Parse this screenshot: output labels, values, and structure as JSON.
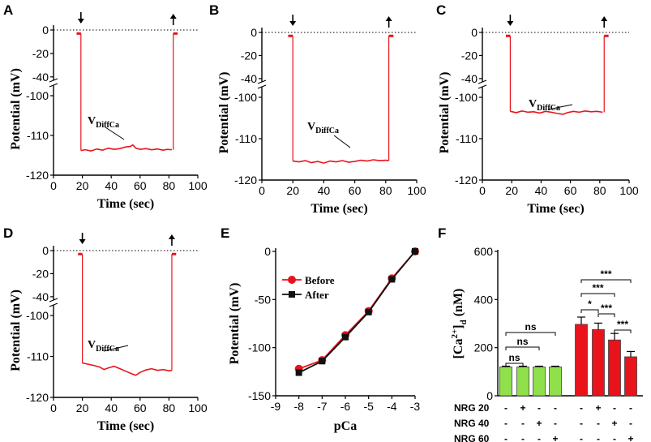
{
  "chart_data": [
    {
      "panel": "A",
      "type": "line",
      "xlabel": "Time (sec)",
      "ylabel": "Potential (mV)",
      "xlim": [
        0,
        100
      ],
      "xticks": [
        "0",
        "20",
        "40",
        "60",
        "80",
        "100"
      ],
      "upper_yticks": [
        "0",
        "-20",
        "-40"
      ],
      "lower_yticks": [
        "-100",
        "-110",
        "-120"
      ],
      "annotation": {
        "main": "V",
        "sub": "DiffCa"
      },
      "arrows": [
        {
          "x": 19,
          "dir": "down"
        },
        {
          "x": 83,
          "dir": "up"
        }
      ],
      "baseline": -3,
      "lower_trace": [
        [
          19,
          -113.8
        ],
        [
          22,
          -113.6
        ],
        [
          26,
          -113.9
        ],
        [
          30,
          -113.4
        ],
        [
          34,
          -113.7
        ],
        [
          38,
          -113.2
        ],
        [
          42,
          -113.5
        ],
        [
          46,
          -113.3
        ],
        [
          50,
          -112.9
        ],
        [
          53,
          -112.8
        ],
        [
          55,
          -112.4
        ],
        [
          57,
          -113.2
        ],
        [
          60,
          -113.5
        ],
        [
          64,
          -113.3
        ],
        [
          68,
          -113.6
        ],
        [
          72,
          -113.4
        ],
        [
          76,
          -113.7
        ],
        [
          79,
          -113.5
        ],
        [
          82,
          -113.6
        ]
      ]
    },
    {
      "panel": "B",
      "type": "line",
      "xlabel": "Time (sec)",
      "ylabel": "Potential (mV)",
      "xlim": [
        0,
        100
      ],
      "xticks": [
        "0",
        "20",
        "40",
        "60",
        "80",
        "100"
      ],
      "upper_yticks": [
        "0",
        "-20",
        "-40"
      ],
      "lower_yticks": [
        "-100",
        "-110",
        "-120"
      ],
      "annotation": {
        "main": "V",
        "sub": "DiffCa"
      },
      "arrows": [
        {
          "x": 20,
          "dir": "down"
        },
        {
          "x": 82,
          "dir": "up"
        }
      ],
      "baseline": -3,
      "lower_trace": [
        [
          20,
          -115.4
        ],
        [
          24,
          -115.6
        ],
        [
          28,
          -115.3
        ],
        [
          32,
          -115.8
        ],
        [
          36,
          -115.5
        ],
        [
          40,
          -115.9
        ],
        [
          44,
          -115.4
        ],
        [
          48,
          -115.6
        ],
        [
          52,
          -115.3
        ],
        [
          56,
          -115.7
        ],
        [
          60,
          -115.5
        ],
        [
          64,
          -115.2
        ],
        [
          68,
          -115.4
        ],
        [
          72,
          -115.1
        ],
        [
          76,
          -115.3
        ],
        [
          80,
          -115.2
        ],
        [
          82,
          -115.3
        ]
      ]
    },
    {
      "panel": "C",
      "type": "line",
      "xlabel": "Time (sec)",
      "ylabel": "Potential (mV)",
      "xlim": [
        0,
        100
      ],
      "xticks": [
        "0",
        "20",
        "40",
        "60",
        "80",
        "100"
      ],
      "upper_yticks": [
        "0",
        "-20",
        "-40"
      ],
      "lower_yticks": [
        "-100",
        "-110",
        "-120"
      ],
      "annotation": {
        "main": "V",
        "sub": "DiffCa"
      },
      "arrows": [
        {
          "x": 19,
          "dir": "down"
        },
        {
          "x": 83,
          "dir": "up"
        }
      ],
      "baseline": -3,
      "lower_trace": [
        [
          19,
          -103.4
        ],
        [
          23,
          -103.7
        ],
        [
          27,
          -103.3
        ],
        [
          31,
          -103.6
        ],
        [
          35,
          -103.5
        ],
        [
          39,
          -103.8
        ],
        [
          43,
          -103.4
        ],
        [
          47,
          -103.6
        ],
        [
          51,
          -103.9
        ],
        [
          55,
          -104.1
        ],
        [
          58,
          -103.7
        ],
        [
          62,
          -103.4
        ],
        [
          66,
          -103.6
        ],
        [
          70,
          -103.3
        ],
        [
          74,
          -103.5
        ],
        [
          78,
          -103.4
        ],
        [
          82,
          -103.6
        ]
      ]
    },
    {
      "panel": "D",
      "type": "line",
      "xlabel": "Time (sec)",
      "ylabel": "Potential (mV)",
      "xlim": [
        0,
        100
      ],
      "xticks": [
        "0",
        "20",
        "40",
        "60",
        "80",
        "100"
      ],
      "upper_yticks": [
        "0",
        "-20",
        "-40"
      ],
      "lower_yticks": [
        "-100",
        "-110",
        "-120"
      ],
      "annotation": {
        "main": "V",
        "sub": "DiffCa"
      },
      "arrows": [
        {
          "x": 20,
          "dir": "down"
        },
        {
          "x": 82,
          "dir": "up"
        }
      ],
      "baseline": -3,
      "lower_trace": [
        [
          20,
          -111.6
        ],
        [
          24,
          -111.9
        ],
        [
          28,
          -112.2
        ],
        [
          32,
          -112.6
        ],
        [
          35,
          -113.2
        ],
        [
          38,
          -112.8
        ],
        [
          42,
          -112.4
        ],
        [
          46,
          -113.0
        ],
        [
          50,
          -113.6
        ],
        [
          54,
          -114.2
        ],
        [
          57,
          -114.6
        ],
        [
          60,
          -113.9
        ],
        [
          64,
          -113.3
        ],
        [
          68,
          -113.0
        ],
        [
          72,
          -113.4
        ],
        [
          76,
          -113.2
        ],
        [
          80,
          -113.5
        ],
        [
          82,
          -113.4
        ]
      ]
    },
    {
      "panel": "E",
      "type": "line",
      "xlabel": "pCa",
      "ylabel": "Potential (mV)",
      "xlim": [
        -9,
        -3
      ],
      "ylim": [
        -150,
        0
      ],
      "xticks": [
        "-9",
        "-8",
        "-7",
        "-6",
        "-5",
        "-4",
        "-3"
      ],
      "yticks": [
        "0",
        "-50",
        "-100",
        "-150"
      ],
      "x": [
        -8,
        -7,
        -6,
        -5,
        -4,
        -3
      ],
      "series": [
        {
          "name": "Before",
          "values": [
            -122,
            -113,
            -87,
            -62,
            -28,
            0
          ],
          "color": "#e8131b",
          "marker": "circle"
        },
        {
          "name": "After",
          "values": [
            -126,
            -114,
            -89,
            -63,
            -29,
            0
          ],
          "color": "#111111",
          "marker": "square"
        }
      ],
      "legend": [
        "Before",
        "After"
      ]
    },
    {
      "panel": "F",
      "type": "bar",
      "ylabel_main": "[Ca",
      "ylabel_sup": "2+",
      "ylabel_close": "]",
      "ylabel_sub": "d",
      "ylabel_unit": " (nM)",
      "ylim": [
        0,
        600
      ],
      "yticks": [
        "0",
        "200",
        "400",
        "600"
      ],
      "groups": [
        {
          "name": "green",
          "color": "#8fe04a",
          "values": [
            120,
            120,
            120,
            120
          ],
          "errors": [
            3,
            3,
            3,
            3
          ]
        },
        {
          "name": "red",
          "color": "#e8131b",
          "values": [
            297,
            275,
            232,
            162
          ],
          "errors": [
            30,
            27,
            27,
            22
          ]
        }
      ],
      "row_labels": [
        "NRG 20",
        "NRG 40",
        "NRG 60"
      ],
      "signs": [
        [
          "-",
          "+",
          "-",
          "-",
          "-",
          "+",
          "-",
          "-"
        ],
        [
          "-",
          "-",
          "+",
          "-",
          "-",
          "-",
          "+",
          "-"
        ],
        [
          "-",
          "-",
          "-",
          "+",
          "-",
          "-",
          "-",
          "+"
        ]
      ],
      "significance": [
        {
          "from": 0,
          "to": 1,
          "label": "ns"
        },
        {
          "from": 0,
          "to": 2,
          "label": "ns"
        },
        {
          "from": 0,
          "to": 3,
          "label": "ns"
        },
        {
          "from": 4,
          "to": 5,
          "label": "*"
        },
        {
          "from": 5,
          "to": 6,
          "label": "***"
        },
        {
          "from": 6,
          "to": 7,
          "label": "***"
        },
        {
          "from": 4,
          "to": 6,
          "label": "***"
        },
        {
          "from": 4,
          "to": 7,
          "label": "***"
        }
      ]
    }
  ]
}
